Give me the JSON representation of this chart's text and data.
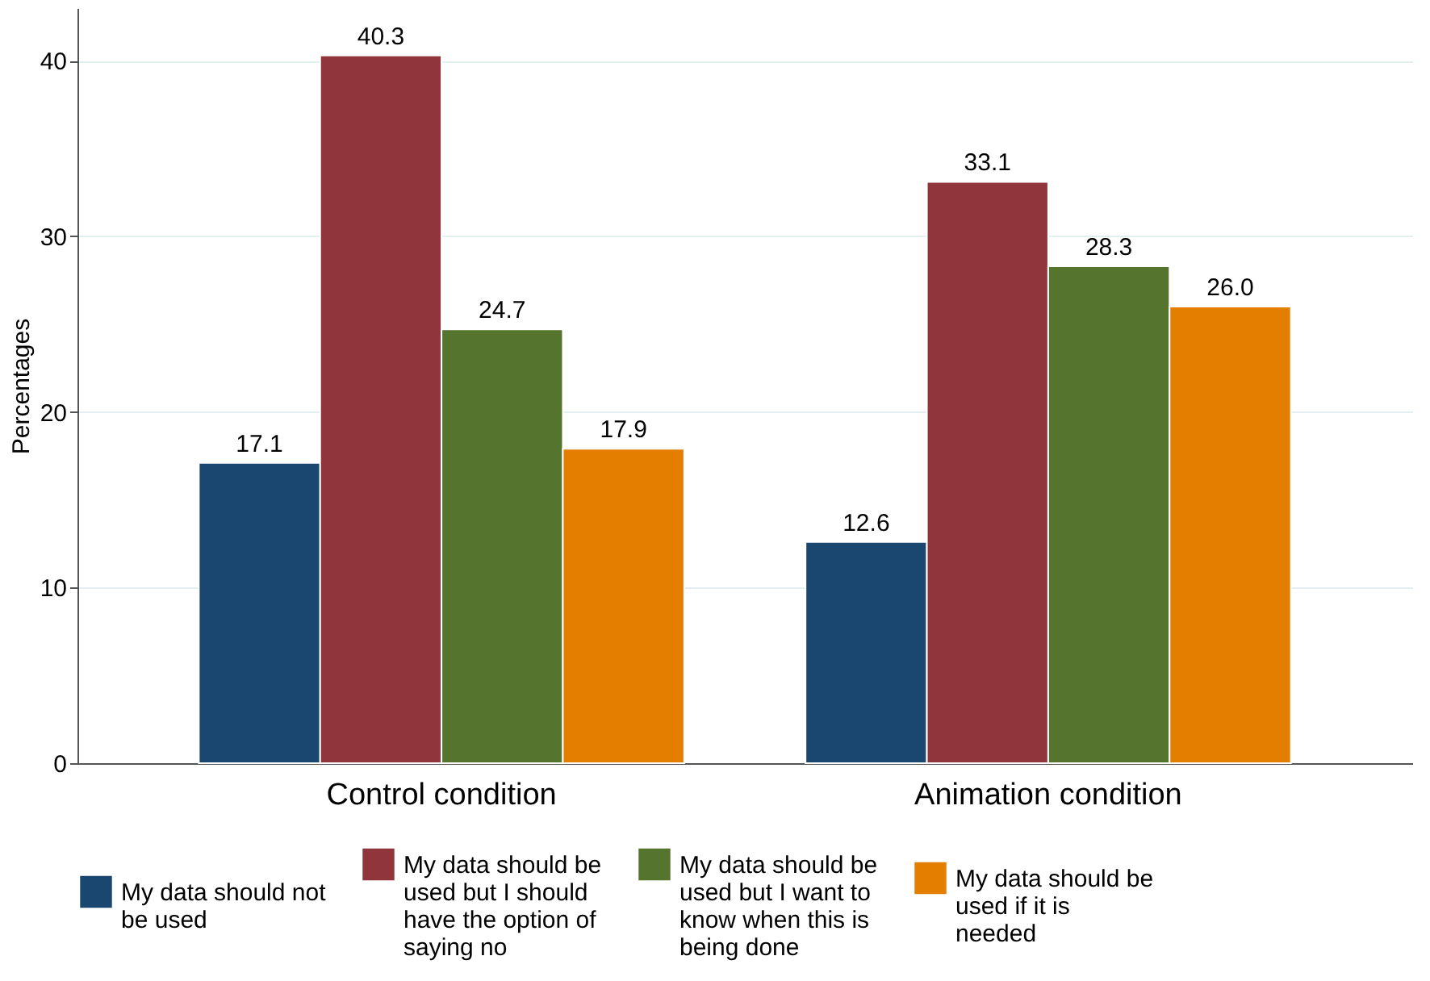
{
  "chart_data": {
    "type": "bar",
    "ylabel": "Percentages",
    "categories": [
      "Control condition",
      "Animation condition"
    ],
    "series": [
      {
        "name": "My data should not be used",
        "color": "#1a476f",
        "values": [
          17.1,
          12.6
        ],
        "value_labels": [
          "17.1",
          "12.6"
        ]
      },
      {
        "name": "My data should be used but I should have the option of saying no",
        "color": "#90353b",
        "values": [
          40.3,
          33.1
        ],
        "value_labels": [
          "40.3",
          "33.1"
        ]
      },
      {
        "name": "My data should be used but I want to know when this is being done",
        "color": "#55752f",
        "values": [
          24.7,
          28.3
        ],
        "value_labels": [
          "24.7",
          "28.3"
        ]
      },
      {
        "name": "My data should be used if it is needed",
        "color": "#e37e00",
        "values": [
          17.9,
          26.0
        ],
        "value_labels": [
          "17.9",
          "26.0"
        ]
      }
    ],
    "ylim": [
      0,
      43
    ],
    "yticks": [
      0,
      10,
      20,
      30,
      40
    ],
    "grid": "y",
    "legend": "bottom"
  }
}
